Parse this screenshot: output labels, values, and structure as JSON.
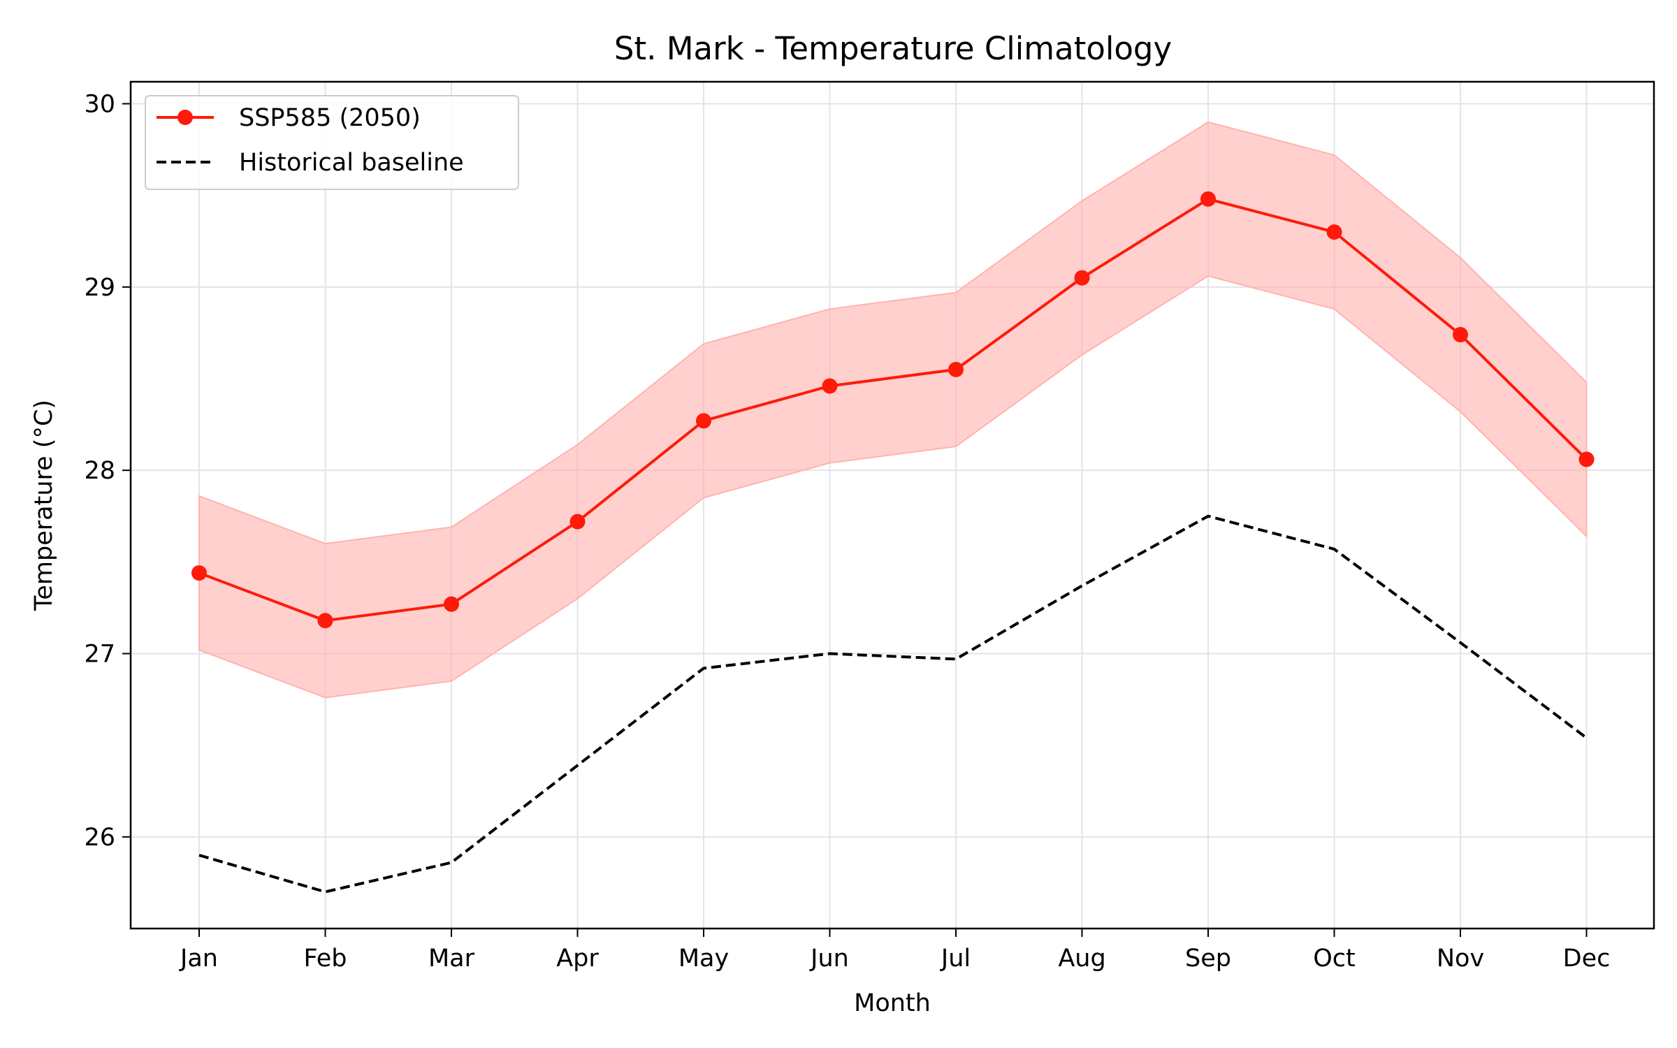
{
  "chart_data": {
    "type": "line",
    "title": "St. Mark - Temperature Climatology",
    "xlabel": "Month",
    "ylabel": "Temperature (°C)",
    "categories": [
      "Jan",
      "Feb",
      "Mar",
      "Apr",
      "May",
      "Jun",
      "Jul",
      "Aug",
      "Sep",
      "Oct",
      "Nov",
      "Dec"
    ],
    "ylim": [
      25.5,
      30.12
    ],
    "yticks": [
      26,
      27,
      28,
      29,
      30
    ],
    "grid": true,
    "legend_position": "top-left",
    "series": [
      {
        "name": "SSP585 (2050)",
        "style": "solid-with-markers",
        "color": "#ff1a0a",
        "values": [
          27.44,
          27.18,
          27.27,
          27.72,
          28.27,
          28.46,
          28.55,
          29.05,
          29.48,
          29.3,
          28.74,
          28.06
        ],
        "band_upper": [
          27.86,
          27.6,
          27.69,
          28.14,
          28.69,
          28.88,
          28.97,
          29.47,
          29.9,
          29.72,
          29.16,
          28.48
        ],
        "band_lower": [
          27.02,
          26.76,
          26.85,
          27.3,
          27.85,
          28.04,
          28.13,
          28.63,
          29.06,
          28.88,
          28.32,
          27.64
        ],
        "band_color": "#ffb3b0"
      },
      {
        "name": "Historical baseline",
        "style": "dashed",
        "color": "#000000",
        "values": [
          25.9,
          25.7,
          25.86,
          26.39,
          26.92,
          27.0,
          26.97,
          27.37,
          27.75,
          27.57,
          27.06,
          26.54
        ]
      }
    ]
  }
}
